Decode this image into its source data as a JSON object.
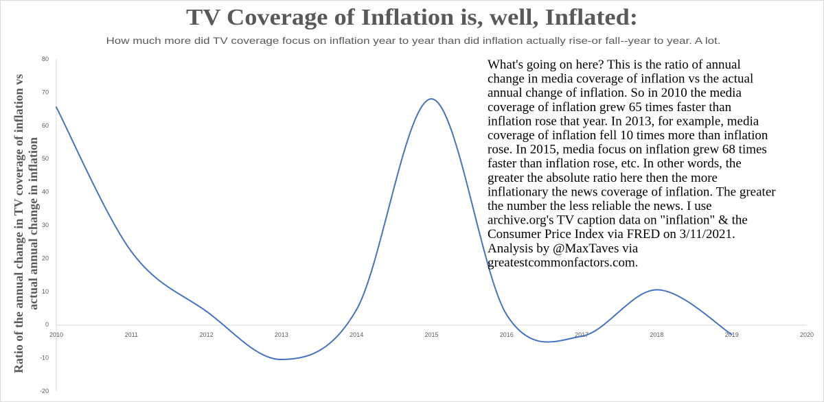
{
  "chart_data": {
    "type": "line",
    "title": "TV Coverage of Inflation is, well, Inflated:",
    "subtitle": "How much more did TV coverage focus on inflation year to year than did inflation actually rise-or fall--year to year. A lot.",
    "xlabel": "",
    "ylabel_lines": [
      "Ratio of the annual change in TV coverage of inflation vs",
      "actual annual change in inflation"
    ],
    "x_ticks": [
      "2010",
      "2011",
      "2012",
      "2013",
      "2014",
      "2015",
      "2016",
      "2017",
      "2018",
      "2019",
      "2020"
    ],
    "y_ticks": [
      "80",
      "70",
      "60",
      "50",
      "40",
      "30",
      "20",
      "10",
      "0",
      "-10",
      "-20"
    ],
    "ylim": [
      -20,
      80
    ],
    "xlim": [
      2010,
      2020
    ],
    "smoothed": true,
    "grid": false,
    "line_color": "#4472c4",
    "x": [
      2010,
      2011,
      2012,
      2013,
      2014,
      2015,
      2016,
      2017,
      2018,
      2019
    ],
    "values": [
      65.5,
      22,
      4,
      -10.5,
      4.5,
      68,
      3,
      -3.5,
      10.5,
      -3
    ],
    "annotation_lines": [
      "What's going on here? This is the ratio of annual",
      "change in media coverage of inflation vs the actual",
      "annual change of inflation. So in 2010 the media",
      "coverage of inflation grew 65 times faster than",
      "inflation rose that year. In 2013, for example, media",
      "coverage of inflation fell 10 times more than inflation",
      "rose. In 2015, media focus on inflation grew 68 times",
      "faster than inflation rose, etc. In other words, the",
      "greater the absolute ratio here then the more",
      "inflationary the news coverage of inflation. The greater",
      "the number the less reliable the news. I use",
      "archive.org's TV caption data on \"inflation\" & the",
      "Consumer Price Index via FRED on 3/11/2021.",
      "Analysis by @MaxTaves via",
      "greatestcommonfactors.com."
    ]
  }
}
